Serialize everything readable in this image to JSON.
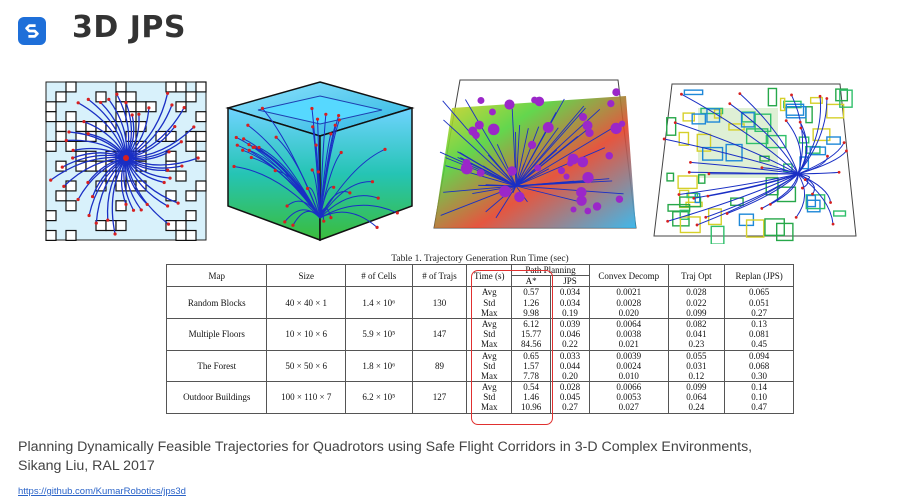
{
  "header": {
    "title": "3D JPS",
    "logo_icon": "s-logo-icon",
    "accent": "#1e6fd9"
  },
  "figures": [
    {
      "name": "random-blocks"
    },
    {
      "name": "multiple-floors"
    },
    {
      "name": "the-forest"
    },
    {
      "name": "outdoor-buildings"
    }
  ],
  "table": {
    "caption": "Table 1. Trajectory Generation Run Time (sec)",
    "headers": {
      "map": "Map",
      "size": "Size",
      "cells": "# of Cells",
      "trajs": "# of Trajs",
      "time": "Time (s)",
      "path_planning": "Path Planning",
      "astar": "A*",
      "jps": "JPS",
      "convex": "Convex Decomp",
      "trajopt": "Traj Opt",
      "replan": "Replan (JPS)"
    },
    "stats": [
      "Avg",
      "Std",
      "Max"
    ],
    "rows": [
      {
        "map": "Random Blocks",
        "size": "40 × 40 × 1",
        "cells": "1.4 × 10⁶",
        "trajs": "130",
        "astar": [
          "0.57",
          "1.26",
          "9.98"
        ],
        "jps": [
          "0.034",
          "0.034",
          "0.19"
        ],
        "convex": [
          "0.0021",
          "0.0028",
          "0.020"
        ],
        "trajopt": [
          "0.028",
          "0.022",
          "0.099"
        ],
        "replan": [
          "0.065",
          "0.051",
          "0.27"
        ]
      },
      {
        "map": "Multiple Floors",
        "size": "10 × 10 × 6",
        "cells": "5.9 × 10⁵",
        "trajs": "147",
        "astar": [
          "6.12",
          "15.77",
          "84.56"
        ],
        "jps": [
          "0.039",
          "0.046",
          "0.22"
        ],
        "convex": [
          "0.0064",
          "0.0038",
          "0.021"
        ],
        "trajopt": [
          "0.082",
          "0.041",
          "0.23"
        ],
        "replan": [
          "0.13",
          "0.081",
          "0.45"
        ]
      },
      {
        "map": "The Forest",
        "size": "50 × 50 × 6",
        "cells": "1.8 × 10⁶",
        "trajs": "89",
        "astar": [
          "0.65",
          "1.57",
          "7.78"
        ],
        "jps": [
          "0.033",
          "0.044",
          "0.20"
        ],
        "convex": [
          "0.0039",
          "0.0024",
          "0.010"
        ],
        "trajopt": [
          "0.055",
          "0.031",
          "0.12"
        ],
        "replan": [
          "0.094",
          "0.068",
          "0.30"
        ]
      },
      {
        "map": "Outdoor Buildings",
        "size": "100 × 110 × 7",
        "cells": "6.2 × 10⁵",
        "trajs": "127",
        "astar": [
          "0.54",
          "1.46",
          "10.96"
        ],
        "jps": [
          "0.028",
          "0.045",
          "0.27"
        ],
        "convex": [
          "0.0066",
          "0.0053",
          "0.027"
        ],
        "trajopt": [
          "0.099",
          "0.064",
          "0.24"
        ],
        "replan": [
          "0.14",
          "0.10",
          "0.47"
        ]
      }
    ]
  },
  "citation": {
    "line1": "Planning Dynamically Feasible Trajectories for Quadrotors using Safe Flight Corridors in 3-D Complex Environments,",
    "line2": "Sikang Liu, RAL 2017",
    "link": "https://github.com/KumarRobotics/jps3d"
  }
}
